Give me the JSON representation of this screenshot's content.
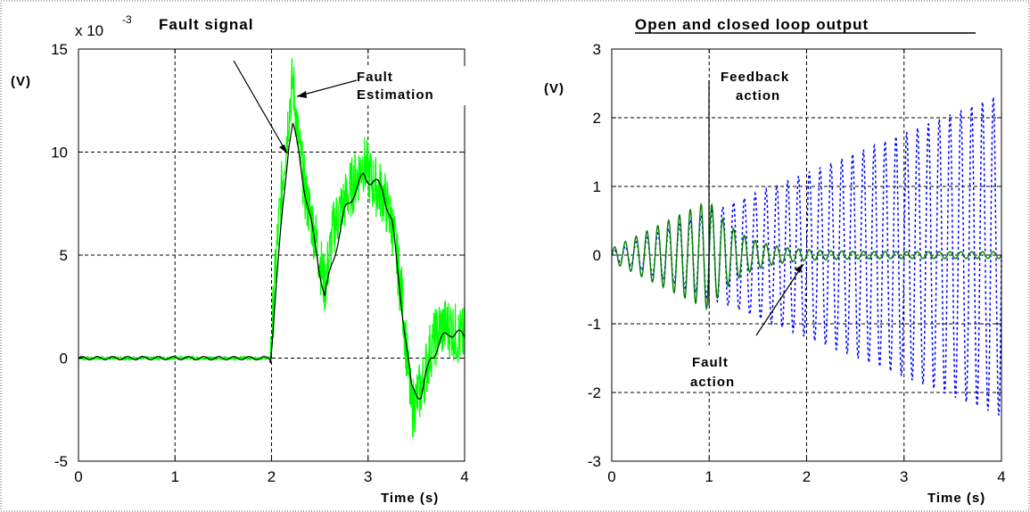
{
  "colors": {
    "fault_signal": "#00ff00",
    "fault_estimation": "#000000",
    "open_loop": "#0000ff",
    "closed_loop": "#007f00",
    "grid": "#000000"
  },
  "chart_data": [
    {
      "type": "line",
      "title": "Fault signal",
      "xlabel": "Time (s)",
      "ylabel": "(V)",
      "y_exponent": "x 10",
      "y_exponent_power": "-3",
      "xlim": [
        0,
        4
      ],
      "ylim": [
        -5,
        15
      ],
      "xticks": [
        "0",
        "1",
        "2",
        "3",
        "4"
      ],
      "yticks": [
        "-5",
        "0",
        "5",
        "10",
        "15"
      ],
      "grid": true,
      "annotations": [
        {
          "text": "Fault",
          "x": 2.5,
          "y": 13.7
        },
        {
          "text": "Estimation",
          "x": 2.5,
          "y": 12.3
        }
      ],
      "series": [
        {
          "style": "noisy",
          "x": [
            0,
            0.5,
            1.0,
            1.5,
            1.99,
            2.05,
            2.12,
            2.18,
            2.22,
            2.28,
            2.35,
            2.45,
            2.55,
            2.65,
            2.75,
            2.85,
            2.95,
            3.05,
            3.15,
            3.25,
            3.35,
            3.45,
            3.55,
            3.65,
            3.75,
            3.85,
            3.95,
            4.0
          ],
          "y": [
            0,
            0,
            0,
            0,
            0,
            5,
            9,
            12,
            13.5,
            10.5,
            8,
            6,
            3.5,
            6.5,
            7.5,
            8.5,
            9.5,
            8.5,
            8,
            6.5,
            3,
            -2.5,
            -1.5,
            0.5,
            1.5,
            1.5,
            1,
            1
          ]
        },
        {
          "style": "smooth",
          "x": [
            0,
            0.5,
            1.0,
            1.5,
            1.99,
            2.05,
            2.12,
            2.18,
            2.22,
            2.28,
            2.35,
            2.45,
            2.55,
            2.65,
            2.75,
            2.85,
            2.95,
            3.05,
            3.15,
            3.25,
            3.35,
            3.45,
            3.55,
            3.65,
            3.75,
            3.85,
            3.95,
            4.0
          ],
          "y": [
            0,
            0,
            0,
            0,
            0,
            3.5,
            7.5,
            10.5,
            11.3,
            10,
            8,
            5.5,
            3,
            5,
            7,
            8,
            8.8,
            8.6,
            8.2,
            6.5,
            2.5,
            -1.5,
            -1.8,
            0,
            0.8,
            1.3,
            1.1,
            1.1
          ]
        }
      ]
    },
    {
      "type": "line",
      "title": "Open and closed loop output",
      "xlabel": "Time (s)",
      "ylabel": "(V)",
      "xlim": [
        0,
        4
      ],
      "ylim": [
        -3,
        3
      ],
      "xticks": [
        "0",
        "1",
        "2",
        "3",
        "4"
      ],
      "yticks": [
        "-3",
        "-2",
        "-1",
        "0",
        "1",
        "2",
        "3"
      ],
      "grid": true,
      "annotations": [
        {
          "text": "Feedback",
          "x": 1.45,
          "y": 2.65
        },
        {
          "text": "action",
          "x": 1.45,
          "y": 2.3
        },
        {
          "text": "Fault",
          "x": 1.2,
          "y": -1.55
        },
        {
          "text": "action",
          "x": 1.2,
          "y": -1.9
        }
      ],
      "series": [
        {
          "style": "dotted",
          "freq_hz": 9,
          "envelope_start": 0.05,
          "envelope_end": 2.35,
          "x_start": 0.0,
          "x_end": 4.0
        },
        {
          "style": "solid",
          "freq_hz": 9,
          "growth_peak": 0.8,
          "peak_time": 1.0,
          "tail_amp": 0.05,
          "x_start": 0.0,
          "x_end": 4.0
        }
      ]
    }
  ]
}
